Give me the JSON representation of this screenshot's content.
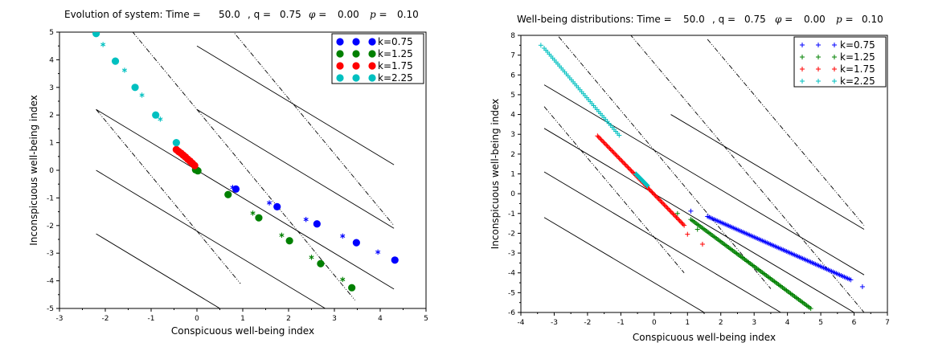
{
  "chart_data": [
    {
      "type": "scatter",
      "title_parts": [
        "Evolution of system: Time =",
        "50.0",
        ", q =",
        "0.75",
        "φ =",
        "0.00",
        "p =",
        "0.10"
      ],
      "xlabel": "Conspicuous well-being index",
      "ylabel": "Inconspicuous well-being index",
      "xlim": [
        -3,
        5
      ],
      "ylim": [
        -5,
        5
      ],
      "xticks": [
        -3,
        -2,
        -1,
        0,
        1,
        2,
        3,
        4,
        5
      ],
      "yticks": [
        -5,
        -4,
        -3,
        -2,
        -1,
        0,
        1,
        2,
        3,
        4,
        5
      ],
      "legend_position": "top-right",
      "legend_marker": "dot",
      "series": [
        {
          "name": "k=0.75",
          "color": "#0000ff",
          "dots": [
            [
              0.85,
              -0.68
            ],
            [
              1.75,
              -1.32
            ],
            [
              2.62,
              -1.94
            ],
            [
              3.48,
              -2.62
            ],
            [
              4.32,
              -3.25
            ]
          ],
          "stars": [
            [
              0.78,
              -0.62
            ],
            [
              1.58,
              -1.18
            ],
            [
              2.38,
              -1.78
            ],
            [
              3.18,
              -2.38
            ],
            [
              3.95,
              -2.96
            ]
          ]
        },
        {
          "name": "k=1.25",
          "color": "#008000",
          "dots": [
            [
              0.68,
              -0.88
            ],
            [
              1.35,
              -1.72
            ],
            [
              2.02,
              -2.55
            ],
            [
              2.7,
              -3.38
            ],
            [
              3.38,
              -4.25
            ]
          ],
          "stars": [
            [
              1.22,
              -1.55
            ],
            [
              1.85,
              -2.35
            ],
            [
              2.5,
              -3.15
            ],
            [
              3.18,
              -3.95
            ]
          ],
          "cluster": [
            [
              -0.03,
              0.02
            ],
            [
              0.0,
              0.0
            ],
            [
              0.02,
              -0.02
            ]
          ]
        },
        {
          "name": "k=1.75",
          "color": "#ff0000",
          "dots": [
            [
              -0.45,
              0.75
            ],
            [
              -0.4,
              0.68
            ],
            [
              -0.35,
              0.62
            ],
            [
              -0.3,
              0.55
            ],
            [
              -0.25,
              0.48
            ],
            [
              -0.2,
              0.4
            ],
            [
              -0.15,
              0.33
            ],
            [
              -0.1,
              0.25
            ],
            [
              -0.05,
              0.17
            ]
          ]
        },
        {
          "name": "k=2.25",
          "color": "#00c0c0",
          "dots": [
            [
              -2.2,
              4.95
            ],
            [
              -1.78,
              3.95
            ],
            [
              -1.35,
              3.0
            ],
            [
              -0.9,
              2.0
            ],
            [
              -0.45,
              1.0
            ]
          ],
          "stars": [
            [
              -2.05,
              4.55
            ],
            [
              -1.58,
              3.62
            ],
            [
              -1.2,
              2.72
            ],
            [
              -0.8,
              1.85
            ]
          ]
        }
      ],
      "reference_lines": {
        "solid": [
          {
            "b": -4.5,
            "x1": -2.2,
            "x2": 1.75
          },
          {
            "b": -2.2,
            "x1": -2.2,
            "x2": 4.3
          },
          {
            "b": 0,
            "x1": -2.2,
            "x2": 4.3
          },
          {
            "b": 2.2,
            "x1": 0,
            "x2": 4.3
          },
          {
            "b": 4.5,
            "x1": 0,
            "x2": 4.3
          }
        ],
        "dashdot": [
          {
            "b": -2.2,
            "x1": -2.2,
            "x2": 0.95
          },
          {
            "b": 2.2,
            "x1": -2.2,
            "x2": 3.45
          },
          {
            "b": 6.6,
            "x1": 0.7,
            "x2": 4.3
          }
        ]
      }
    },
    {
      "type": "scatter",
      "title_parts": [
        "Well-being distributions: Time =",
        "50.0",
        ", q =",
        "0.75",
        "φ =",
        "0.00",
        "p =",
        "0.10"
      ],
      "xlabel": "Conspicuous well-being index",
      "ylabel": "Inconspicuous well-being index",
      "xlim": [
        -4,
        7
      ],
      "ylim": [
        -6,
        8
      ],
      "xticks": [
        -4,
        -3,
        -2,
        -1,
        0,
        1,
        2,
        3,
        4,
        5,
        6,
        7
      ],
      "yticks": [
        -6,
        -5,
        -4,
        -3,
        -2,
        -1,
        0,
        1,
        2,
        3,
        4,
        5,
        6,
        7,
        8
      ],
      "legend_position": "top-right",
      "legend_marker": "plus",
      "series": [
        {
          "name": "k=0.75",
          "color": "#0000ff",
          "segments": [
            [
              1.6,
              -1.15,
              5.9,
              -4.35
            ]
          ],
          "count": 90,
          "extra": [
            [
              1.1,
              -0.88
            ],
            [
              6.25,
              -4.7
            ]
          ]
        },
        {
          "name": "k=1.25",
          "color": "#008000",
          "segments": [
            [
              1.1,
              -1.3,
              4.7,
              -5.8
            ]
          ],
          "count": 90,
          "extra": [
            [
              0.7,
              -1.0
            ],
            [
              1.3,
              -1.8
            ]
          ]
        },
        {
          "name": "k=1.75",
          "color": "#ff0000",
          "segments": [
            [
              -1.7,
              2.92,
              0.9,
              -1.6
            ]
          ],
          "count": 80,
          "extra": [
            [
              1.45,
              -2.55
            ],
            [
              1.0,
              -2.05
            ]
          ]
        },
        {
          "name": "k=2.25",
          "color": "#00c0c0",
          "segments": [
            [
              -3.3,
              7.35,
              -1.05,
              2.95
            ],
            [
              -0.55,
              1.0,
              -0.2,
              0.4
            ]
          ],
          "count": 90,
          "extra": [
            [
              -3.4,
              7.5
            ]
          ]
        }
      ],
      "reference_lines": {
        "solid": [
          {
            "b": -4.5,
            "x1": -3.3,
            "x2": 1.75
          },
          {
            "b": -2.2,
            "x1": -3.3,
            "x2": 6.3
          },
          {
            "b": 0,
            "x1": -3.3,
            "x2": 6.3
          },
          {
            "b": 2.2,
            "x1": -3.3,
            "x2": 6.3
          },
          {
            "b": 4.5,
            "x1": 0.5,
            "x2": 6.3
          }
        ],
        "dashdot": [
          {
            "b": -2.2,
            "x1": -3.3,
            "x2": 0.9
          },
          {
            "b": 2.2,
            "x1": -3.3,
            "x2": 3.5
          },
          {
            "b": 6.6,
            "x1": -1.6,
            "x2": 6.3
          },
          {
            "b": 11,
            "x1": 1.6,
            "x2": 6.3
          }
        ]
      }
    }
  ]
}
